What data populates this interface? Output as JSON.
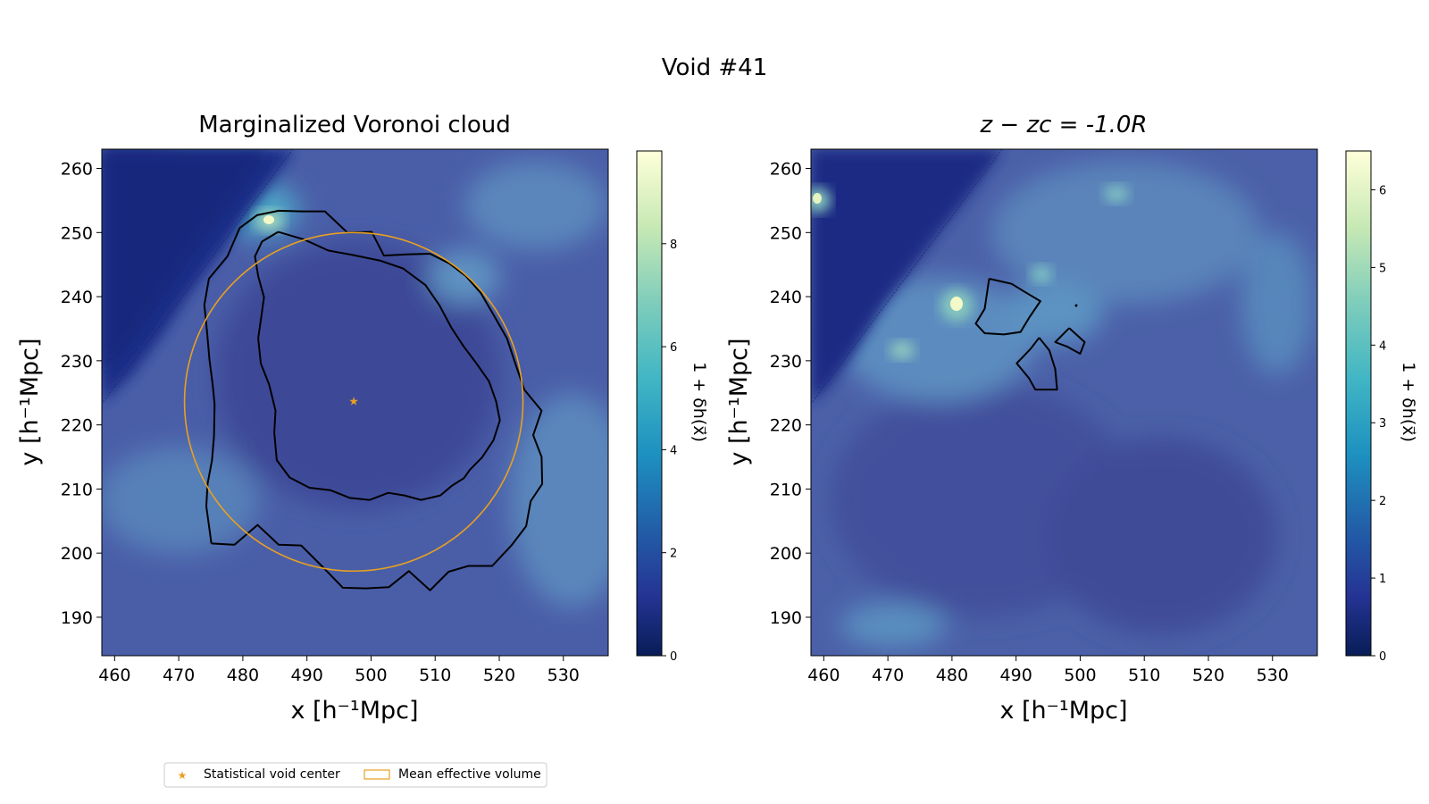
{
  "figure": {
    "title": "Void #41"
  },
  "chart_data": [
    {
      "type": "heatmap",
      "title": "Marginalized Voronoi cloud",
      "xlabel": "x [h⁻¹Mpc]",
      "ylabel": "y [h⁻¹Mpc]",
      "xlim": [
        458,
        537
      ],
      "ylim": [
        184,
        263
      ],
      "xticks": [
        460,
        470,
        480,
        490,
        500,
        510,
        520,
        530
      ],
      "yticks": [
        190,
        200,
        210,
        220,
        230,
        240,
        250,
        260
      ],
      "colorbar": {
        "label": "1 + δh(x⃗)",
        "range": [
          0,
          9.8
        ],
        "ticks": [
          0,
          2,
          4,
          6,
          8
        ],
        "colormap": "YlGnBu_r"
      },
      "void_center": {
        "x": 497.3,
        "y": 223.6
      },
      "mean_effective_radius": 26.4,
      "contours": [
        [
          [
            475.1,
            201.5
          ],
          [
            478.7,
            201.3
          ],
          [
            482.3,
            204.4
          ],
          [
            485.6,
            201.3
          ],
          [
            489.1,
            201.2
          ],
          [
            492.3,
            198.0
          ],
          [
            495.6,
            194.6
          ],
          [
            499.2,
            194.5
          ],
          [
            502.8,
            194.7
          ],
          [
            505.9,
            197.2
          ],
          [
            509.2,
            194.2
          ],
          [
            512.1,
            197.1
          ],
          [
            515.2,
            198.0
          ],
          [
            518.9,
            198.0
          ],
          [
            521.9,
            201.2
          ],
          [
            524.2,
            204.2
          ],
          [
            524.9,
            208.1
          ],
          [
            526.7,
            210.8
          ],
          [
            526.6,
            215.0
          ],
          [
            525.3,
            218.4
          ],
          [
            526.6,
            222.2
          ],
          [
            523.9,
            225.5
          ],
          [
            522.5,
            229.6
          ],
          [
            521.2,
            233.5
          ],
          [
            519.1,
            237.2
          ],
          [
            517.1,
            240.6
          ],
          [
            514.8,
            243.2
          ],
          [
            512.2,
            245.2
          ],
          [
            509.2,
            246.7
          ],
          [
            505.6,
            246.6
          ],
          [
            502.0,
            246.4
          ],
          [
            500.1,
            250.1
          ],
          [
            496.3,
            250.0
          ],
          [
            492.8,
            253.3
          ],
          [
            489.2,
            253.3
          ],
          [
            485.6,
            253.4
          ],
          [
            482.2,
            252.7
          ],
          [
            479.5,
            250.7
          ],
          [
            477.6,
            246.3
          ],
          [
            474.7,
            242.8
          ],
          [
            474.0,
            238.7
          ],
          [
            474.4,
            234.7
          ],
          [
            474.8,
            230.1
          ],
          [
            475.3,
            226.2
          ],
          [
            475.6,
            223.2
          ],
          [
            475.5,
            218.2
          ],
          [
            475.2,
            214.5
          ],
          [
            474.5,
            210.8
          ],
          [
            474.3,
            207.3
          ],
          [
            475.1,
            201.5
          ]
        ],
        [
          [
            485.5,
            250.1
          ],
          [
            489.6,
            248.9
          ],
          [
            493.3,
            247.2
          ],
          [
            497.1,
            246.5
          ],
          [
            501.5,
            245.6
          ],
          [
            505.0,
            244.4
          ],
          [
            508.5,
            241.8
          ],
          [
            510.7,
            238.6
          ],
          [
            512.5,
            235.2
          ],
          [
            514.4,
            232.3
          ],
          [
            516.5,
            229.5
          ],
          [
            518.4,
            226.8
          ],
          [
            519.5,
            223.7
          ],
          [
            520.1,
            220.7
          ],
          [
            519.1,
            217.6
          ],
          [
            517.3,
            214.9
          ],
          [
            515.4,
            213.0
          ],
          [
            514.5,
            211.7
          ],
          [
            512.6,
            210.5
          ],
          [
            510.8,
            209.0
          ],
          [
            507.8,
            208.3
          ],
          [
            505.2,
            209.0
          ],
          [
            502.7,
            209.4
          ],
          [
            499.8,
            208.3
          ],
          [
            496.7,
            208.6
          ],
          [
            493.7,
            209.8
          ],
          [
            490.4,
            210.2
          ],
          [
            487.3,
            211.8
          ],
          [
            485.3,
            214.5
          ],
          [
            484.9,
            218.8
          ],
          [
            485.1,
            222.2
          ],
          [
            484.1,
            226.3
          ],
          [
            482.8,
            229.6
          ],
          [
            482.4,
            233.5
          ],
          [
            482.8,
            236.3
          ],
          [
            483.3,
            239.9
          ],
          [
            482.4,
            243.2
          ],
          [
            481.9,
            246.3
          ],
          [
            483.0,
            248.6
          ],
          [
            485.5,
            250.1
          ]
        ]
      ]
    },
    {
      "type": "heatmap",
      "title": "z − zc = -1.0R",
      "xlabel": "x [h⁻¹Mpc]",
      "ylabel": "y [h⁻¹Mpc]",
      "xlim": [
        458,
        537
      ],
      "ylim": [
        184,
        263
      ],
      "xticks": [
        460,
        470,
        480,
        490,
        500,
        510,
        520,
        530
      ],
      "yticks": [
        190,
        200,
        210,
        220,
        230,
        240,
        250,
        260
      ],
      "colorbar": {
        "label": "1 + δh(x⃗)",
        "range": [
          0,
          6.5
        ],
        "ticks": [
          0,
          1,
          2,
          3,
          4,
          5,
          6
        ],
        "colormap": "YlGnBu_r"
      },
      "contours": [
        [
          [
            485.8,
            242.8
          ],
          [
            489.3,
            242.0
          ],
          [
            491.6,
            240.6
          ],
          [
            493.8,
            239.3
          ],
          [
            492.1,
            236.8
          ],
          [
            490.7,
            234.5
          ],
          [
            488.1,
            234.1
          ],
          [
            485.1,
            234.3
          ],
          [
            483.7,
            235.8
          ],
          [
            485.1,
            238.1
          ],
          [
            485.8,
            242.8
          ]
        ],
        [
          [
            493.6,
            233.6
          ],
          [
            495.2,
            231.6
          ],
          [
            496.1,
            228.7
          ],
          [
            496.4,
            225.5
          ],
          [
            493.0,
            225.5
          ],
          [
            492.0,
            227.3
          ],
          [
            490.1,
            229.6
          ],
          [
            492.3,
            231.9
          ],
          [
            493.6,
            233.6
          ]
        ],
        [
          [
            498.3,
            235.1
          ],
          [
            500.7,
            232.9
          ],
          [
            500.0,
            231.1
          ],
          [
            498.0,
            232.2
          ],
          [
            496.1,
            232.9
          ],
          [
            498.3,
            235.1
          ]
        ]
      ]
    }
  ],
  "legend": {
    "center_label": "Statistical void center",
    "volume_label": "Mean effective volume",
    "center_color": "#e8a020",
    "volume_color": "#e8a020"
  }
}
